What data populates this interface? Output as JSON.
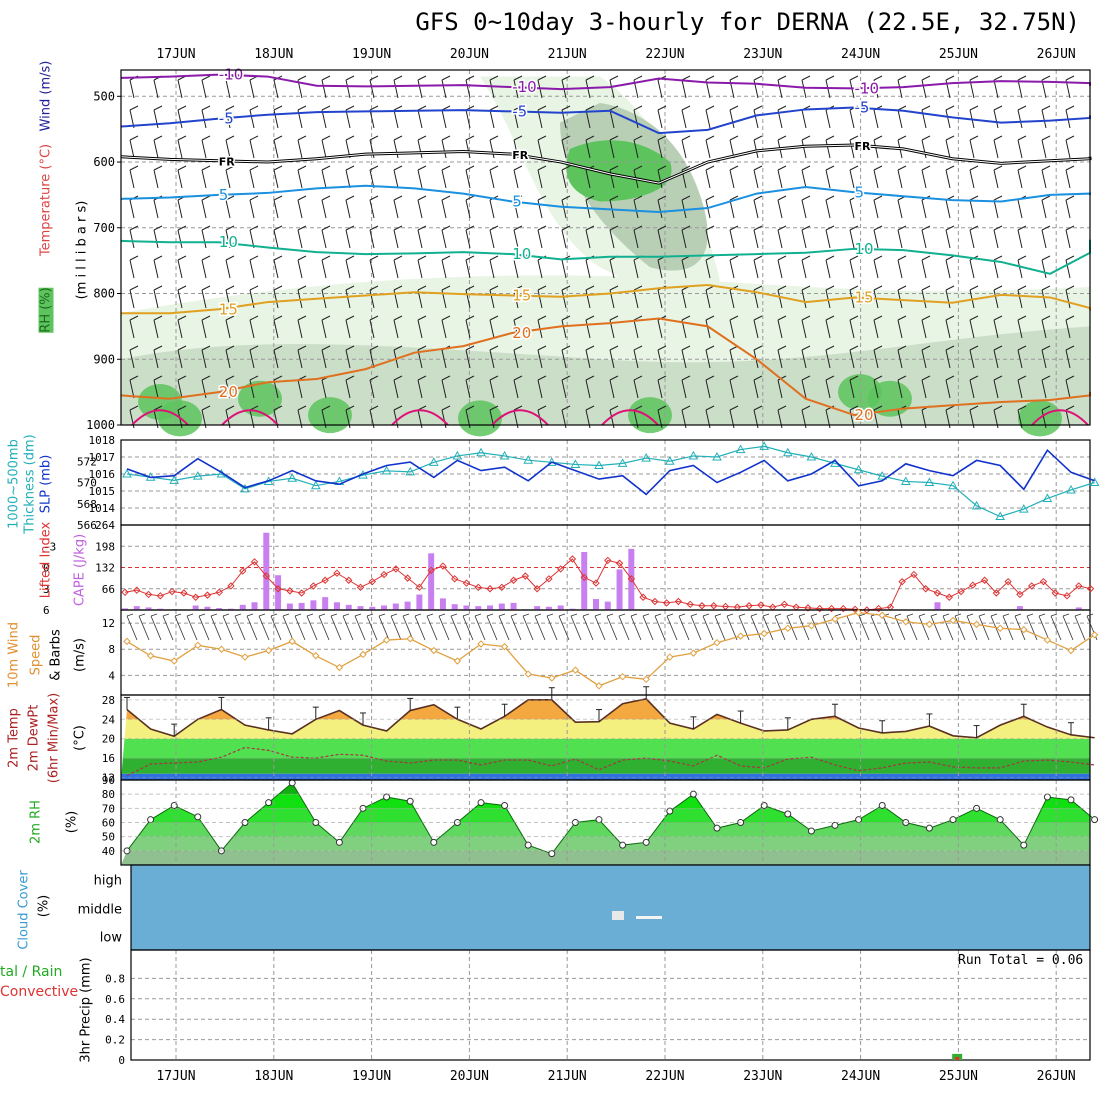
{
  "title": "GFS 0~10day 3-hourly for DERNA (22.5E, 32.75N)",
  "dates": [
    "17JUN",
    "18JUN",
    "19JUN",
    "20JUN",
    "21JUN",
    "22JUN",
    "23JUN",
    "24JUN",
    "25JUN",
    "26JUN"
  ],
  "colors": {
    "panel_border": "#000000",
    "grid": "#999999",
    "rh_light": "#e8f4e4",
    "rh_mid": "#b8cfb6",
    "rh_dark": "#5dc45d",
    "temp_m10": "#8a1aaa",
    "temp_m5": "#2244cc",
    "temp_fr": "#000000",
    "temp_5": "#1a90e0",
    "temp_10": "#11b090",
    "temp_15": "#e0a020",
    "temp_20": "#e07020",
    "temp_25": "#dd1177",
    "slp": "#1133cc",
    "thickness": "#22b0b8",
    "lifted_index": "#dd3333",
    "cape": "#c880f0",
    "wind10m": "#e0a040",
    "temp_fill_hot": "#f4a840",
    "temp_fill_warm": "#f4f080",
    "temp_fill_green": "#50e050",
    "temp_fill_dark": "#30b030",
    "temp_fill_blue": "#3070e0",
    "rh_fill": "#20e020",
    "cloud": "#6aaed6",
    "precip_total": "#30b030",
    "precip_conv": "#e03030"
  },
  "chart_data": [
    {
      "type": "area",
      "panel": "upper_air",
      "title": "",
      "ylabel_parts": [
        "RH (%)",
        "Temperature (°C)",
        "Wind (m/s)",
        "(millibars)"
      ],
      "ylabel_axis": "(m i l l i b a r s)",
      "ylim": [
        1000,
        460
      ],
      "yticks": [
        500,
        600,
        700,
        800,
        900,
        1000
      ],
      "contours": [
        {
          "label": "-10",
          "level_mb": [
            472,
            470,
            467,
            470,
            484,
            485,
            484,
            483,
            486,
            489,
            486,
            473,
            479,
            481,
            487,
            488,
            486,
            480,
            477,
            478,
            480,
            484
          ]
        },
        {
          "label": "-5",
          "level_mb": [
            546,
            541,
            534,
            528,
            524,
            523,
            522,
            521,
            523,
            525,
            522,
            556,
            551,
            529,
            520,
            517,
            522,
            532,
            540,
            537,
            533,
            529
          ]
        },
        {
          "label": "FR",
          "level_mb": [
            592,
            596,
            598,
            600,
            595,
            588,
            586,
            584,
            588,
            600,
            618,
            632,
            600,
            583,
            576,
            574,
            580,
            595,
            602,
            598,
            595,
            592
          ]
        },
        {
          "label": "5",
          "level_mb": [
            656,
            654,
            650,
            647,
            640,
            636,
            640,
            648,
            660,
            668,
            672,
            676,
            670,
            648,
            638,
            646,
            652,
            658,
            660,
            650,
            648,
            650
          ]
        },
        {
          "label": "10",
          "level_mb": [
            720,
            722,
            722,
            730,
            737,
            740,
            739,
            737,
            740,
            748,
            744,
            744,
            742,
            740,
            738,
            732,
            734,
            742,
            752,
            770,
            738,
            718
          ]
        },
        {
          "label": "15",
          "level_mb": [
            830,
            830,
            824,
            813,
            808,
            803,
            798,
            801,
            803,
            805,
            800,
            792,
            787,
            798,
            813,
            806,
            810,
            814,
            802,
            806,
            822,
            826
          ]
        },
        {
          "label": "20",
          "level_mb": [
            955,
            960,
            950,
            935,
            930,
            915,
            890,
            880,
            860,
            850,
            845,
            838,
            850,
            900,
            960,
            985,
            975,
            970,
            965,
            962,
            955,
            950
          ]
        }
      ],
      "x_days": [
        0,
        0.5,
        1,
        1.5,
        2,
        2.5,
        3,
        3.5,
        4,
        4.5,
        5,
        5.5,
        6,
        6.5,
        7,
        7.5,
        8,
        8.5,
        9,
        9.5,
        10,
        10.3
      ]
    },
    {
      "type": "line",
      "panel": "slp_thickness",
      "ylabel_left": "1000~500mb Thickness (dm)",
      "ylabel_right": "SLP (mb)",
      "ylim_left": [
        566,
        574
      ],
      "yticks_left": [
        566,
        568,
        570,
        572
      ],
      "ylim_right": [
        1013,
        1018
      ],
      "yticks_right": [
        1014,
        1015,
        1016,
        1017,
        1018
      ],
      "x_days": [
        0,
        0.25,
        0.5,
        0.75,
        1,
        1.25,
        1.5,
        1.75,
        2,
        2.25,
        2.5,
        2.75,
        3,
        3.25,
        3.5,
        3.75,
        4,
        4.25,
        4.5,
        4.75,
        5,
        5.25,
        5.5,
        5.75,
        6,
        6.25,
        6.5,
        6.75,
        7,
        7.25,
        7.5,
        7.75,
        8,
        8.25,
        8.5,
        8.75,
        9,
        9.25,
        9.5,
        9.75,
        10,
        10.25
      ],
      "series": [
        {
          "name": "SLP",
          "values": [
            1016.3,
            1015.8,
            1015.9,
            1016.9,
            1016.1,
            1015.2,
            1015.6,
            1016.2,
            1015.6,
            1015.4,
            1016.0,
            1016.5,
            1016.7,
            1015.8,
            1016.8,
            1016.2,
            1016.4,
            1015.6,
            1016.7,
            1016.2,
            1015.7,
            1015.9,
            1014.8,
            1016.2,
            1016.5,
            1015.5,
            1016.1,
            1016.8,
            1015.6,
            1016.0,
            1016.8,
            1015.3,
            1015.6,
            1016.6,
            1016.2,
            1015.9,
            1016.8,
            1016.5,
            1015.1,
            1017.4,
            1016.1,
            1015.6
          ]
        },
        {
          "name": "Thickness",
          "values": [
            570.8,
            570.5,
            570.2,
            570.6,
            570.8,
            569.4,
            570.1,
            570.4,
            569.7,
            570.1,
            570.7,
            571.1,
            571.0,
            571.9,
            572.5,
            572.8,
            572.5,
            572.1,
            571.9,
            571.7,
            571.6,
            571.8,
            572.3,
            572.0,
            572.5,
            572.4,
            573.1,
            573.4,
            572.8,
            572.4,
            571.8,
            571.2,
            570.6,
            570.1,
            570.0,
            569.7,
            567.8,
            566.8,
            567.5,
            568.5,
            569.3,
            570.0
          ]
        }
      ]
    },
    {
      "type": "bar",
      "panel": "stability",
      "ylabel_left": "Lifted Index",
      "ylabel_right": "CAPE (J/kg)",
      "yticks_left": [
        -3,
        0,
        3,
        6
      ],
      "ylim_left": [
        -6,
        6
      ],
      "yticks_right": [
        66,
        132,
        198,
        264
      ],
      "ylim_right": [
        0,
        264
      ],
      "x_days": [
        0,
        0.125,
        0.25,
        0.375,
        0.5,
        0.625,
        0.75,
        0.875,
        1,
        1.125,
        1.25,
        1.375,
        1.5,
        1.625,
        1.75,
        1.875,
        2,
        2.125,
        2.25,
        2.375,
        2.5,
        2.625,
        2.75,
        2.875,
        3,
        3.125,
        3.25,
        3.375,
        3.5,
        3.625,
        3.75,
        3.875,
        4,
        4.125,
        4.25,
        4.375,
        4.5,
        4.625,
        4.75,
        4.875,
        5,
        5.125,
        5.25,
        5.375,
        5.5,
        5.625,
        5.75,
        5.875,
        6,
        6.125,
        6.25,
        6.375,
        6.5,
        6.625,
        6.75,
        6.875,
        7,
        7.125,
        7.25,
        7.375,
        7.5,
        7.625,
        7.75,
        7.875,
        8,
        8.125,
        8.25,
        8.375,
        8.5,
        8.625,
        8.75,
        8.875,
        9,
        9.125,
        9.25,
        9.375,
        9.5,
        9.625,
        9.75,
        9.875,
        10,
        10.125,
        10.25
      ],
      "series": [
        {
          "name": "CAPE",
          "values": [
            5,
            12,
            8,
            4,
            2,
            0,
            14,
            10,
            6,
            4,
            16,
            24,
            240,
            108,
            20,
            22,
            30,
            40,
            24,
            16,
            12,
            10,
            14,
            20,
            26,
            48,
            176,
            36,
            18,
            14,
            12,
            14,
            20,
            22,
            2,
            12,
            10,
            14,
            4,
            180,
            34,
            26,
            126,
            190,
            0,
            0,
            0,
            0,
            0,
            0,
            0,
            0,
            0,
            0,
            0,
            0,
            0,
            0,
            0,
            0,
            0,
            0,
            0,
            0,
            0,
            0,
            0,
            0,
            0,
            24,
            0,
            0,
            0,
            0,
            0,
            0,
            12,
            0,
            0,
            0,
            0,
            8,
            0
          ]
        },
        {
          "name": "Lifted Index",
          "values": [
            3.5,
            3.2,
            3.8,
            4.0,
            3.4,
            3.6,
            4.2,
            3.9,
            3.5,
            2.6,
            0.5,
            -0.8,
            1.2,
            3.0,
            3.3,
            3.6,
            2.6,
            1.8,
            0.8,
            1.8,
            2.8,
            2.0,
            1.0,
            0.2,
            1.5,
            2.8,
            0.4,
            -0.2,
            1.6,
            2.2,
            2.8,
            3.0,
            2.8,
            1.8,
            1.2,
            3.0,
            1.6,
            0.2,
            -1.2,
            1.4,
            2.2,
            -1.0,
            -0.6,
            1.6,
            4.2,
            4.8,
            5.0,
            4.8,
            5.2,
            5.4,
            5.4,
            5.5,
            5.6,
            5.4,
            5.3,
            5.6,
            5.2,
            5.6,
            5.7,
            5.8,
            5.8,
            5.8,
            5.9,
            6.0,
            5.8,
            5.6,
            2.0,
            1.0,
            3.0,
            3.6,
            4.2,
            3.4,
            2.5,
            1.8,
            3.6,
            2.0,
            3.8,
            2.6,
            2.0,
            3.6,
            4.0,
            2.6,
            3.0
          ]
        }
      ]
    },
    {
      "type": "line",
      "panel": "wind10m",
      "ylabel": "10m Wind Speed & Barbs (m/s)",
      "ylim": [
        1,
        14
      ],
      "yticks": [
        4,
        8,
        12
      ],
      "x_days": [
        0,
        0.25,
        0.5,
        0.75,
        1,
        1.25,
        1.5,
        1.75,
        2,
        2.25,
        2.5,
        2.75,
        3,
        3.25,
        3.5,
        3.75,
        4,
        4.25,
        4.5,
        4.75,
        5,
        5.25,
        5.5,
        5.75,
        6,
        6.25,
        6.5,
        6.75,
        7,
        7.25,
        7.5,
        7.75,
        8,
        8.25,
        8.5,
        8.75,
        9,
        9.25,
        9.5,
        9.75,
        10,
        10.25
      ],
      "series": [
        {
          "name": "10m Wind Speed",
          "values": [
            9.2,
            7.0,
            6.2,
            8.6,
            8.0,
            6.8,
            7.8,
            9.2,
            7.0,
            5.2,
            7.2,
            9.4,
            9.6,
            7.8,
            6.2,
            8.8,
            8.4,
            4.2,
            3.6,
            4.8,
            2.4,
            3.8,
            3.4,
            6.8,
            7.4,
            9.0,
            10.0,
            10.4,
            11.2,
            11.6,
            12.6,
            13.6,
            13.2,
            12.2,
            11.8,
            12.4,
            11.8,
            11.2,
            11.0,
            9.4,
            7.8,
            10.2
          ]
        }
      ]
    },
    {
      "type": "area",
      "panel": "temp2m",
      "ylabel": "2m Temp 2m DewPt (6hr Min/Max) (°C)",
      "ylim": [
        11.5,
        29
      ],
      "yticks": [
        12,
        16,
        20,
        24,
        28
      ],
      "x_days": [
        0,
        0.25,
        0.5,
        0.75,
        1,
        1.25,
        1.5,
        1.75,
        2,
        2.25,
        2.5,
        2.75,
        3,
        3.25,
        3.5,
        3.75,
        4,
        4.25,
        4.5,
        4.75,
        5,
        5.25,
        5.5,
        5.75,
        6,
        6.25,
        6.5,
        6.75,
        7,
        7.25,
        7.5,
        7.75,
        8,
        8.25,
        8.5,
        8.75,
        9,
        9.25,
        9.5,
        9.75,
        10,
        10.25
      ],
      "series": [
        {
          "name": "2m Temp",
          "values": [
            26,
            22,
            20.5,
            24,
            26,
            22.8,
            21.8,
            21,
            24,
            25.8,
            22.8,
            21.6,
            25.8,
            27,
            24,
            22,
            24.6,
            28,
            28,
            23.4,
            23.5,
            27.2,
            28.2,
            23.2,
            22,
            25,
            23.2,
            21.6,
            21.8,
            24,
            24.6,
            22.2,
            21.2,
            21.5,
            22.6,
            20.6,
            20.2,
            22.8,
            24.6,
            22.4,
            20.8,
            20.2
          ]
        },
        {
          "name": "2m DewPt",
          "values": [
            12.4,
            14.8,
            15.0,
            15.2,
            16.2,
            18.2,
            17.6,
            16.2,
            16.0,
            16.8,
            16.6,
            15.4,
            15.0,
            15.6,
            15.6,
            14.6,
            15.6,
            15.6,
            14.4,
            15.8,
            13.6,
            15.6,
            16.0,
            15.4,
            14.4,
            16.6,
            14.4,
            14.0,
            15.8,
            16.2,
            14.6,
            13.4,
            14.0,
            15.0,
            15.2,
            14.2,
            14.0,
            14.0,
            15.4,
            15.6,
            15.2,
            14.6
          ]
        }
      ]
    },
    {
      "type": "area",
      "panel": "rh2m",
      "ylabel": "2m RH (%)",
      "ylim": [
        30,
        90
      ],
      "yticks": [
        40,
        50,
        60,
        70,
        80,
        90
      ],
      "x_days": [
        0,
        0.25,
        0.5,
        0.75,
        1,
        1.25,
        1.5,
        1.75,
        2,
        2.25,
        2.5,
        2.75,
        3,
        3.25,
        3.5,
        3.75,
        4,
        4.25,
        4.5,
        4.75,
        5,
        5.25,
        5.5,
        5.75,
        6,
        6.25,
        6.5,
        6.75,
        7,
        7.25,
        7.5,
        7.75,
        8,
        8.25,
        8.5,
        8.75,
        9,
        9.25,
        9.5,
        9.75,
        10,
        10.25
      ],
      "series": [
        {
          "name": "2m RH",
          "values": [
            40,
            62,
            72,
            64,
            40,
            60,
            74,
            88,
            60,
            46,
            70,
            78,
            75,
            46,
            60,
            74,
            72,
            44,
            38,
            60,
            62,
            44,
            46,
            68,
            80,
            56,
            60,
            72,
            66,
            54,
            58,
            62,
            72,
            60,
            56,
            62,
            70,
            62,
            44,
            78,
            76,
            62
          ]
        }
      ]
    },
    {
      "type": "heatmap",
      "panel": "cloud",
      "ylabel": "Cloud Cover (%)",
      "levels": [
        "high",
        "middle",
        "low"
      ]
    },
    {
      "type": "bar",
      "panel": "precip",
      "ylabel_left": "Total / Rain Convective",
      "ylabel_axis": "3hr Precip (mm)",
      "ylim": [
        0,
        1
      ],
      "yticks": [
        0,
        0.2,
        0.4,
        0.6,
        0.8
      ],
      "run_total": "Run Total = 0.06",
      "series": [
        {
          "name": "Total / Rain",
          "x_days": [
            8.1
          ],
          "values": [
            0.06
          ]
        },
        {
          "name": "Convective",
          "x_days": [
            8.1
          ],
          "values": [
            0.03
          ]
        }
      ]
    }
  ],
  "labels": {
    "rh": "RH (%)",
    "temperature": "Temperature (°C)",
    "wind": "Wind (m/s)",
    "millibars": "(m i l l i b a r s)",
    "thickness": "1000~500mb",
    "thickness2": "Thickness (dm)",
    "slp": "SLP (mb)",
    "lifted": "Lifted Index",
    "cape": "CAPE (J/kg)",
    "wind10m_a": "10m Wind",
    "wind10m_b": "Speed",
    "wind10m_c": "& Barbs",
    "wind10m_units": "(m/s)",
    "temp_a": "2m Temp",
    "temp_b": "2m DewPt",
    "temp_c": "(6hr Min/Max)",
    "temp_units": "(°C)",
    "rh2m": "2m RH",
    "rh2m_units": "(%)",
    "cloud": "Cloud Cover",
    "cloud_units": "(%)",
    "precip_a": "tal / Rain",
    "precip_b": "Convective",
    "precip_units": "3hr Precip (mm)",
    "cc_high": "high",
    "cc_middle": "middle",
    "cc_low": "low",
    "run_total": "Run Total = 0.06"
  }
}
